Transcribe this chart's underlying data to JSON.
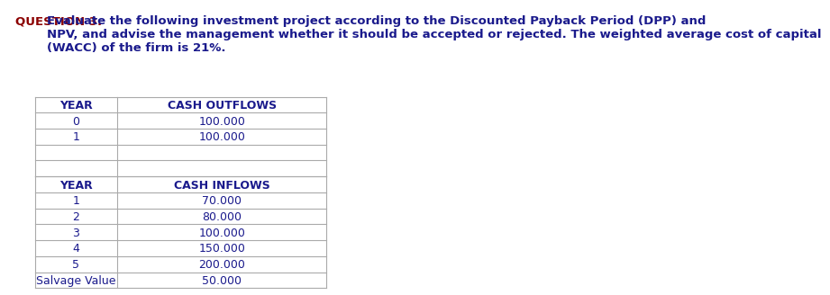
{
  "title_bold": "QUESTION 3.",
  "title_normal": "      Evaluate the following investment project according to the Discounted Payback Period (DPP) and\nNPV, and advise the management whether it should be accepted or rejected. The weighted average cost of capital\n(WACC) of the firm is 21%.",
  "outflow_header": [
    "YEAR",
    "CASH OUTFLOWS"
  ],
  "outflow_rows": [
    [
      "0",
      "100.000"
    ],
    [
      "1",
      "100.000"
    ],
    [
      "",
      ""
    ],
    [
      "",
      ""
    ]
  ],
  "inflow_header": [
    "YEAR",
    "CASH INFLOWS"
  ],
  "inflow_rows": [
    [
      "1",
      "70.000"
    ],
    [
      "2",
      "80.000"
    ],
    [
      "3",
      "100.000"
    ],
    [
      "4",
      "150.000"
    ],
    [
      "5",
      "200.000"
    ],
    [
      "Salvage Value",
      "50.000"
    ]
  ],
  "title_color": "#8B0000",
  "text_color": "#1a1a8c",
  "header_color": "#1a1a8c",
  "line_color": "#aaaaaa",
  "bg_color": "#ffffff",
  "font_size_title": 9.5,
  "font_size_table": 9.0
}
